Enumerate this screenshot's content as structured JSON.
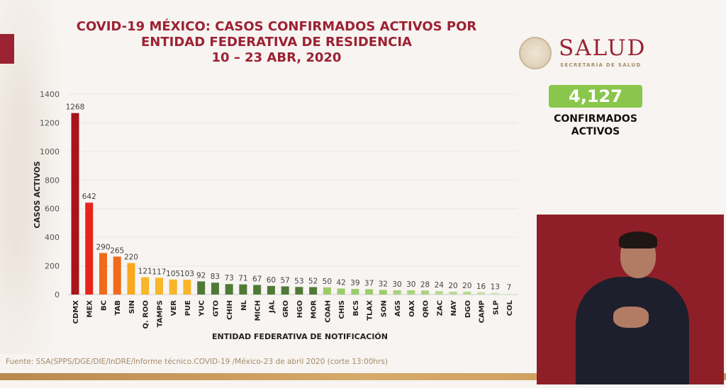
{
  "title": {
    "line1": "COVID-19 MÉXICO: CASOS CONFIRMADOS ACTIVOS POR",
    "line2": "ENTIDAD FEDERATIVA DE RESIDENCIA",
    "line3": "10 – 23 ABR, 2020"
  },
  "logo": {
    "name": "SALUD",
    "subtitle": "SECRETARÍA DE SALUD"
  },
  "total": {
    "value": "4,127",
    "label_line1": "CONFIRMADOS",
    "label_line2": "ACTIVOS"
  },
  "source": "Fuente: SSA(SPPS/DGE/DIE/InDRE/Informe técnico.COVID-19 /México-23 de abril 2020 (corte 13:00hrs)",
  "chart_data": {
    "type": "bar",
    "title": "COVID-19 MÉXICO: CASOS CONFIRMADOS ACTIVOS POR ENTIDAD FEDERATIVA DE RESIDENCIA 10 – 23 ABR, 2020",
    "xlabel": "ENTIDAD FEDERATIVA DE NOTIFICACIÓN",
    "ylabel": "CASOS ACTIVOS",
    "ylim": [
      0,
      1400
    ],
    "yticks": [
      0,
      200,
      400,
      600,
      800,
      1000,
      1200,
      1400
    ],
    "grid": true,
    "categories": [
      "CDMX",
      "MEX",
      "BC",
      "TAB",
      "SIN",
      "Q. ROO",
      "TAMPS",
      "VER",
      "PUE",
      "YUC",
      "GTO",
      "CHIH",
      "NL",
      "MICH",
      "JAL",
      "GRO",
      "HGO",
      "MOR",
      "COAH",
      "CHIS",
      "BCS",
      "TLAX",
      "SON",
      "AGS",
      "OAX",
      "QRO",
      "ZAC",
      "NAY",
      "DGO",
      "CAMP",
      "SLP",
      "COL"
    ],
    "values": [
      1268,
      642,
      290,
      265,
      220,
      121,
      117,
      105,
      103,
      92,
      83,
      73,
      71,
      67,
      60,
      57,
      53,
      52,
      50,
      42,
      39,
      37,
      32,
      30,
      30,
      28,
      24,
      20,
      20,
      16,
      13,
      7
    ],
    "colors": [
      "#a8141b",
      "#e8251c",
      "#f06a1c",
      "#f06a1c",
      "#f8a91f",
      "#f8b628",
      "#f8b628",
      "#f8b628",
      "#f8b628",
      "#4f7a35",
      "#4f7a35",
      "#4f7a35",
      "#4f7a35",
      "#4f7a35",
      "#4f7a35",
      "#4f7a35",
      "#4f7a35",
      "#4f7a35",
      "#9ccc6a",
      "#9ccc6a",
      "#9ccc6a",
      "#9ccc6a",
      "#9ccc6a",
      "#a9d27e",
      "#a9d27e",
      "#a9d27e",
      "#b6d993",
      "#b6d993",
      "#b6d993",
      "#c3dfa8",
      "#cfe5bb",
      "#dbecd0"
    ]
  },
  "colors": {
    "brand": "#9b2233",
    "total_box": "#8ac64b",
    "source_text": "#a68b6a"
  }
}
